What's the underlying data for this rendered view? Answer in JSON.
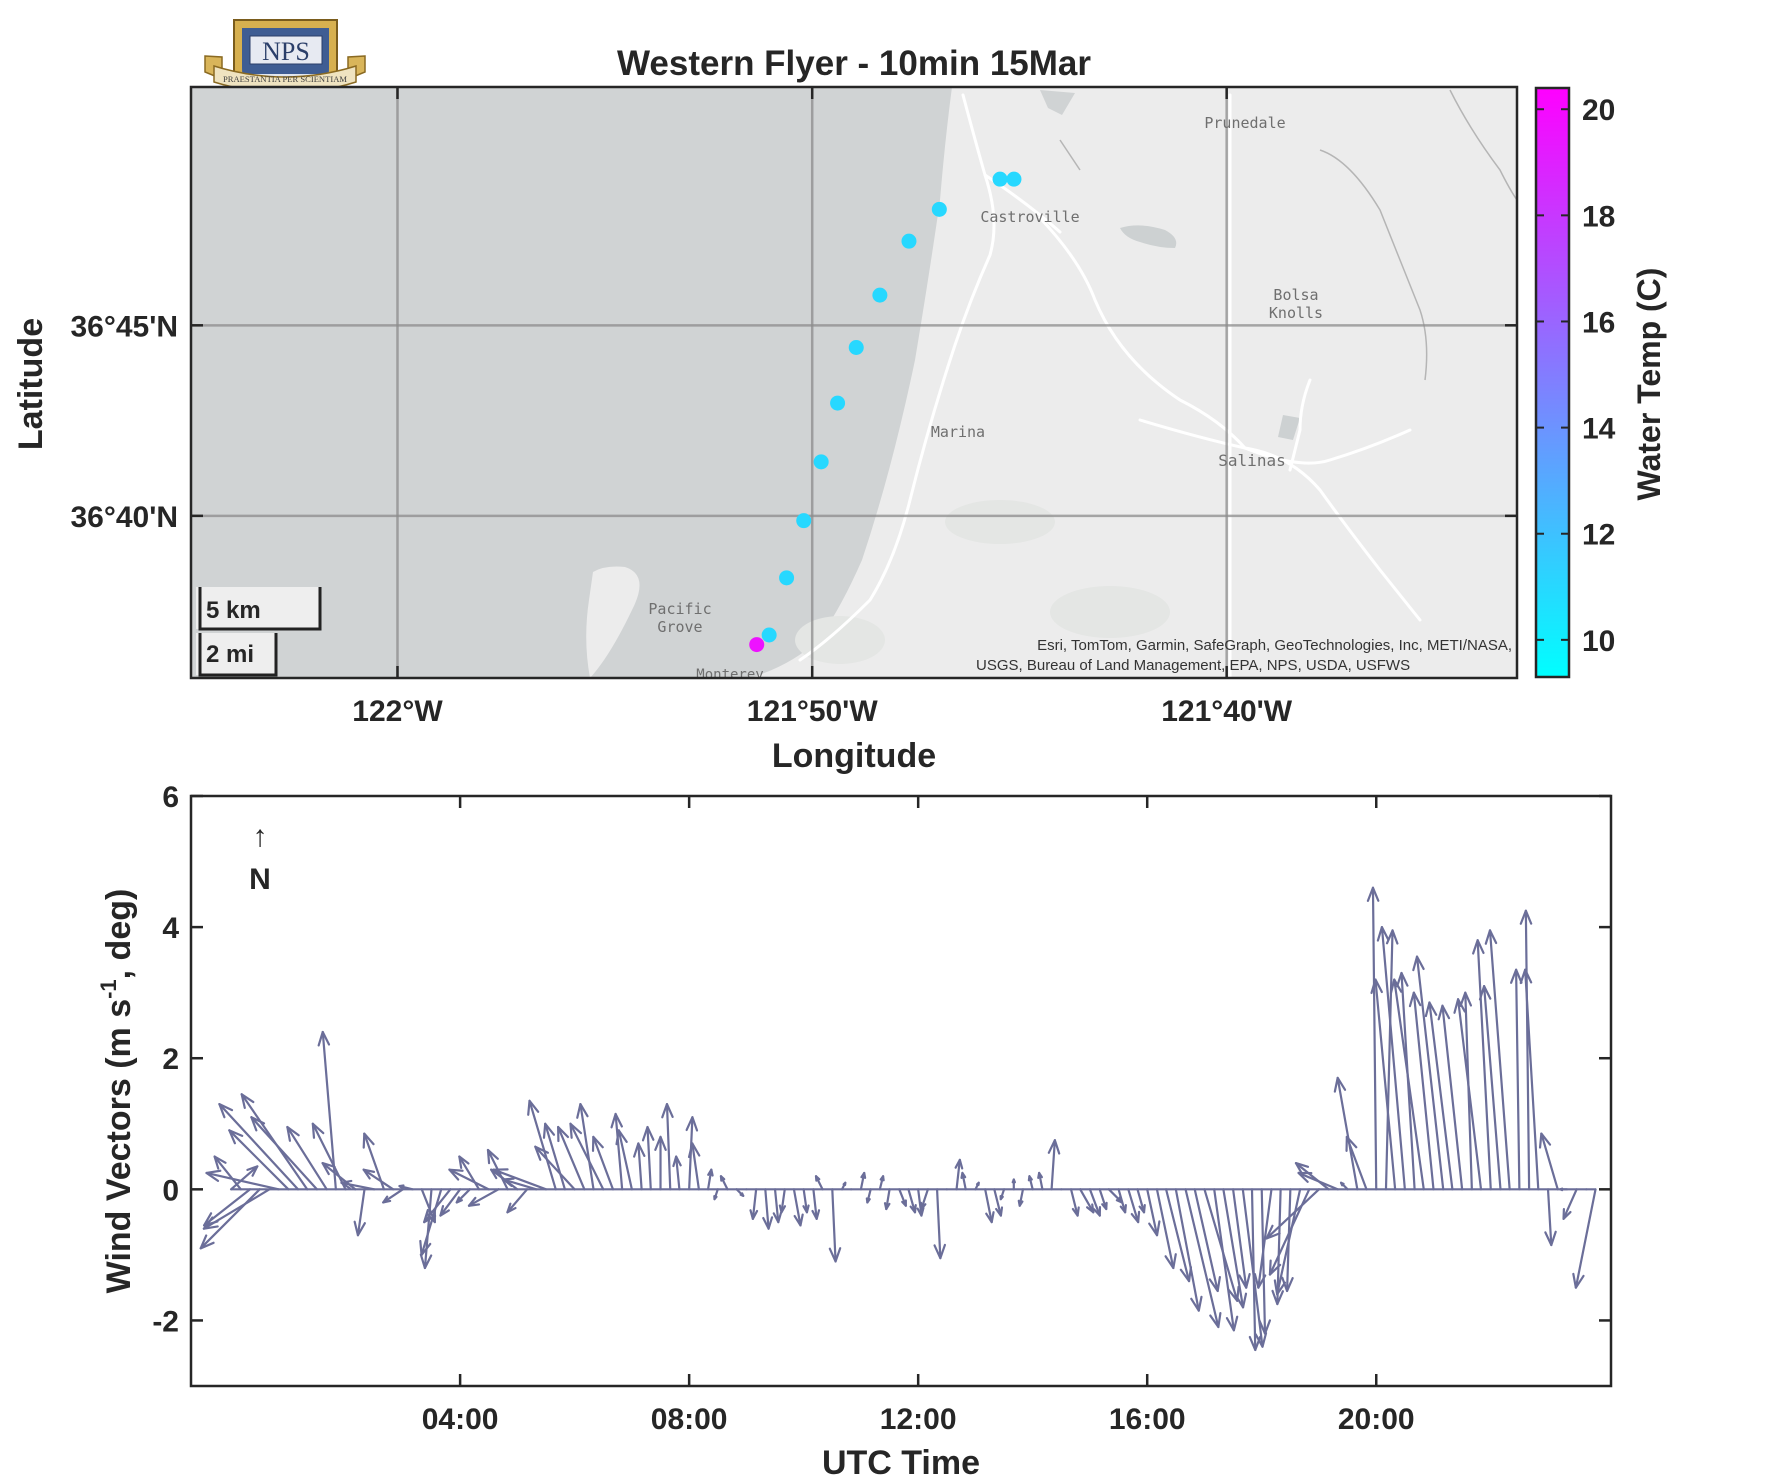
{
  "figure": {
    "title": "Western Flyer - 10min 15Mar",
    "logo": {
      "acronym": "NPS",
      "motto": "PRAESTANTIA PER SCIENTIAM"
    }
  },
  "chart_data": [
    {
      "type": "scatter",
      "subtype": "map-track",
      "xlabel": "Longitude",
      "ylabel": "Latitude",
      "xlim": [
        -122.083,
        -121.55
      ],
      "ylim": [
        36.5958,
        36.8542
      ],
      "x_ticks": [
        -122.0,
        -121.8333,
        -121.6667
      ],
      "x_tick_labels": [
        "122°W",
        "121°50'W",
        "121°40'W"
      ],
      "y_ticks": [
        36.6667,
        36.75
      ],
      "y_tick_labels": [
        "36°40'N",
        "36°45'N"
      ],
      "grid": true,
      "colorbar": {
        "label": "Water Temp (C)",
        "min": 9.3,
        "max": 20.4,
        "ticks": [
          10,
          12,
          14,
          16,
          18,
          20
        ],
        "low_color": "#00ffff",
        "high_color": "#ff00ff"
      },
      "points": [
        {
          "lon": -121.8556,
          "lat": 36.6104,
          "temp": 19.6
        },
        {
          "lon": -121.8506,
          "lat": 36.6146,
          "temp": 11.0
        },
        {
          "lon": -121.8436,
          "lat": 36.6396,
          "temp": 11.0
        },
        {
          "lon": -121.8367,
          "lat": 36.6646,
          "temp": 11.0
        },
        {
          "lon": -121.8297,
          "lat": 36.6903,
          "temp": 11.0
        },
        {
          "lon": -121.8231,
          "lat": 36.716,
          "temp": 11.0
        },
        {
          "lon": -121.8156,
          "lat": 36.7403,
          "temp": 11.0
        },
        {
          "lon": -121.8061,
          "lat": 36.7632,
          "temp": 11.0
        },
        {
          "lon": -121.7944,
          "lat": 36.7868,
          "temp": 11.0
        },
        {
          "lon": -121.7822,
          "lat": 36.8007,
          "temp": 11.0
        },
        {
          "lon": -121.7578,
          "lat": 36.8139,
          "temp": 11.0
        },
        {
          "lon": -121.7522,
          "lat": 36.8139,
          "temp": 11.0
        }
      ],
      "place_labels": [
        "Prunedale",
        "Castroville",
        "Bolsa",
        "Knolls",
        "Marina",
        "Salinas",
        "Pacific",
        "Grove",
        "Monterey"
      ],
      "scale_bar": {
        "km": "5 km",
        "mi": "2 mi"
      },
      "attribution": [
        "Esri, TomTom, Garmin, SafeGraph, GeoTechnologies, Inc, METI/NASA,",
        "USGS, Bureau of Land Management, EPA, NPS, USDA, USFWS"
      ]
    },
    {
      "type": "quiver",
      "xlabel": "UTC Time",
      "ylabel": "Wind Vectors (m s⁻¹, deg)",
      "ylabel_parts": {
        "pre": "Wind Vectors (m s",
        "sup": "-1",
        "post": ", deg)"
      },
      "north_arrow": {
        "arrow": "↑",
        "label": "N"
      },
      "xlim_hours": [
        -0.7,
        24.1
      ],
      "ylim": [
        -3,
        6
      ],
      "x_ticks_hours": [
        4,
        8,
        12,
        16,
        20
      ],
      "x_tick_labels": [
        "04:00",
        "08:00",
        "12:00",
        "16:00",
        "20:00"
      ],
      "y_ticks": [
        -2,
        0,
        2,
        4,
        6
      ],
      "color": "#6b6e99",
      "vectors": [
        {
          "t": 0.0,
          "u": 0.4,
          "v": 0.35
        },
        {
          "t": 0.17,
          "u": -0.4,
          "v": 0.5
        },
        {
          "t": 0.33,
          "u": -0.7,
          "v": -0.55
        },
        {
          "t": 0.5,
          "u": -0.9,
          "v": -0.9
        },
        {
          "t": 0.67,
          "u": -1.0,
          "v": -0.6
        },
        {
          "t": 0.83,
          "u": -1.1,
          "v": 0.25
        },
        {
          "t": 1.0,
          "u": -0.9,
          "v": 0.9
        },
        {
          "t": 1.17,
          "u": -1.2,
          "v": 1.3
        },
        {
          "t": 1.33,
          "u": -1.0,
          "v": 1.45
        },
        {
          "t": 1.5,
          "u": -1.0,
          "v": 1.1
        },
        {
          "t": 1.67,
          "u": -0.6,
          "v": 0.95
        },
        {
          "t": 1.83,
          "u": -0.2,
          "v": 2.4
        },
        {
          "t": 2.0,
          "u": -0.5,
          "v": 1.0
        },
        {
          "t": 2.17,
          "u": -0.5,
          "v": 0.4
        },
        {
          "t": 2.33,
          "u": -0.1,
          "v": -0.7
        },
        {
          "t": 2.5,
          "u": -0.5,
          "v": 0.1
        },
        {
          "t": 2.67,
          "u": -0.3,
          "v": 0.85
        },
        {
          "t": 2.83,
          "u": -0.45,
          "v": 0.3
        },
        {
          "t": 3.0,
          "u": -0.3,
          "v": -0.2
        },
        {
          "t": 3.17,
          "u": -0.2,
          "v": 0.05
        },
        {
          "t": 3.33,
          "u": 0.2,
          "v": -0.5
        },
        {
          "t": 3.5,
          "u": -0.1,
          "v": -1.2
        },
        {
          "t": 3.67,
          "u": -0.3,
          "v": -1.0
        },
        {
          "t": 3.83,
          "u": -0.4,
          "v": -0.5
        },
        {
          "t": 4.0,
          "u": -0.3,
          "v": -0.4
        },
        {
          "t": 4.17,
          "u": -0.2,
          "v": -0.2
        },
        {
          "t": 4.33,
          "u": -0.3,
          "v": 0.5
        },
        {
          "t": 4.5,
          "u": -0.6,
          "v": 0.3
        },
        {
          "t": 4.67,
          "u": -0.45,
          "v": -0.25
        },
        {
          "t": 4.83,
          "u": -0.3,
          "v": 0.6
        },
        {
          "t": 5.0,
          "u": -0.4,
          "v": 0.3
        },
        {
          "t": 5.17,
          "u": -0.3,
          "v": -0.35
        },
        {
          "t": 5.33,
          "u": -0.5,
          "v": 0.15
        },
        {
          "t": 5.5,
          "u": -0.8,
          "v": 0.3
        },
        {
          "t": 5.67,
          "u": -0.4,
          "v": 1.35
        },
        {
          "t": 5.83,
          "u": -0.3,
          "v": 1.0
        },
        {
          "t": 6.0,
          "u": -0.6,
          "v": 0.65
        },
        {
          "t": 6.17,
          "u": -0.4,
          "v": 0.95
        },
        {
          "t": 6.33,
          "u": -0.2,
          "v": 1.3
        },
        {
          "t": 6.5,
          "u": -0.5,
          "v": 1.0
        },
        {
          "t": 6.67,
          "u": -0.3,
          "v": 0.8
        },
        {
          "t": 6.83,
          "u": -0.1,
          "v": 1.15
        },
        {
          "t": 7.0,
          "u": -0.2,
          "v": 0.9
        },
        {
          "t": 7.17,
          "u": -0.05,
          "v": 0.7
        },
        {
          "t": 7.33,
          "u": -0.05,
          "v": 0.95
        },
        {
          "t": 7.5,
          "u": 0.0,
          "v": 0.8
        },
        {
          "t": 7.67,
          "u": -0.05,
          "v": 1.3
        },
        {
          "t": 7.83,
          "u": -0.05,
          "v": 0.5
        },
        {
          "t": 8.0,
          "u": 0.05,
          "v": 1.1
        },
        {
          "t": 8.17,
          "u": -0.1,
          "v": 0.7
        },
        {
          "t": 8.33,
          "u": 0.05,
          "v": 0.3
        },
        {
          "t": 8.5,
          "u": -0.05,
          "v": -0.15
        },
        {
          "t": 8.67,
          "u": -0.1,
          "v": 0.2
        },
        {
          "t": 8.83,
          "u": 0.1,
          "v": -0.1
        },
        {
          "t": 9.0,
          "u": 0.0,
          "v": 0.0
        },
        {
          "t": 9.17,
          "u": -0.05,
          "v": -0.45
        },
        {
          "t": 9.33,
          "u": 0.05,
          "v": -0.6
        },
        {
          "t": 9.5,
          "u": 0.05,
          "v": -0.5
        },
        {
          "t": 9.67,
          "u": -0.05,
          "v": -0.35
        },
        {
          "t": 9.83,
          "u": 0.1,
          "v": -0.55
        },
        {
          "t": 10.0,
          "u": 0.05,
          "v": -0.35
        },
        {
          "t": 10.17,
          "u": 0.05,
          "v": -0.45
        },
        {
          "t": 10.33,
          "u": -0.1,
          "v": 0.2
        },
        {
          "t": 10.5,
          "u": 0.05,
          "v": -1.1
        },
        {
          "t": 10.67,
          "u": 0.05,
          "v": 0.1
        },
        {
          "t": 10.83,
          "u": 0.0,
          "v": 0.0
        },
        {
          "t": 11.0,
          "u": 0.05,
          "v": 0.25
        },
        {
          "t": 11.17,
          "u": -0.05,
          "v": -0.2
        },
        {
          "t": 11.33,
          "u": 0.05,
          "v": 0.2
        },
        {
          "t": 11.5,
          "u": -0.05,
          "v": -0.3
        },
        {
          "t": 11.67,
          "u": 0.1,
          "v": -0.25
        },
        {
          "t": 11.83,
          "u": 0.1,
          "v": -0.35
        },
        {
          "t": 12.0,
          "u": 0.05,
          "v": -0.4
        },
        {
          "t": 12.17,
          "u": -0.1,
          "v": -0.3
        },
        {
          "t": 12.33,
          "u": 0.05,
          "v": -1.05
        },
        {
          "t": 12.5,
          "u": 0.0,
          "v": 0.0
        },
        {
          "t": 12.67,
          "u": 0.05,
          "v": 0.45
        },
        {
          "t": 12.83,
          "u": -0.05,
          "v": 0.25
        },
        {
          "t": 13.0,
          "u": 0.05,
          "v": 0.1
        },
        {
          "t": 13.17,
          "u": 0.1,
          "v": -0.5
        },
        {
          "t": 13.33,
          "u": 0.1,
          "v": -0.4
        },
        {
          "t": 13.5,
          "u": -0.05,
          "v": -0.15
        },
        {
          "t": 13.67,
          "u": 0.0,
          "v": 0.15
        },
        {
          "t": 13.83,
          "u": -0.05,
          "v": -0.25
        },
        {
          "t": 14.0,
          "u": -0.05,
          "v": 0.2
        },
        {
          "t": 14.17,
          "u": -0.05,
          "v": 0.25
        },
        {
          "t": 14.33,
          "u": 0.05,
          "v": 0.75
        },
        {
          "t": 14.5,
          "u": 0.0,
          "v": 0.0
        },
        {
          "t": 14.67,
          "u": 0.1,
          "v": -0.4
        },
        {
          "t": 14.83,
          "u": 0.2,
          "v": -0.35
        },
        {
          "t": 15.0,
          "u": 0.15,
          "v": -0.4
        },
        {
          "t": 15.17,
          "u": 0.1,
          "v": -0.3
        },
        {
          "t": 15.33,
          "u": 0.2,
          "v": -0.2
        },
        {
          "t": 15.5,
          "u": 0.1,
          "v": -0.35
        },
        {
          "t": 15.67,
          "u": 0.15,
          "v": -0.5
        },
        {
          "t": 15.83,
          "u": 0.1,
          "v": -0.35
        },
        {
          "t": 16.0,
          "u": 0.15,
          "v": -0.7
        },
        {
          "t": 16.17,
          "u": 0.25,
          "v": -1.2
        },
        {
          "t": 16.33,
          "u": 0.35,
          "v": -1.4
        },
        {
          "t": 16.5,
          "u": 0.35,
          "v": -1.85
        },
        {
          "t": 16.67,
          "u": 0.5,
          "v": -2.1
        },
        {
          "t": 16.83,
          "u": 0.35,
          "v": -1.55
        },
        {
          "t": 17.0,
          "u": 0.5,
          "v": -1.7
        },
        {
          "t": 17.17,
          "u": 0.3,
          "v": -2.15
        },
        {
          "t": 17.33,
          "u": 0.3,
          "v": -1.8
        },
        {
          "t": 17.5,
          "u": 0.2,
          "v": -1.5
        },
        {
          "t": 17.67,
          "u": 0.3,
          "v": -2.4
        },
        {
          "t": 17.83,
          "u": 0.05,
          "v": -2.45
        },
        {
          "t": 18.0,
          "u": 0.05,
          "v": -2.2
        },
        {
          "t": 18.17,
          "u": -0.2,
          "v": -1.5
        },
        {
          "t": 18.33,
          "u": -0.05,
          "v": -1.75
        },
        {
          "t": 18.5,
          "u": -0.05,
          "v": -1.55
        },
        {
          "t": 18.67,
          "u": -0.35,
          "v": -1.6
        },
        {
          "t": 18.83,
          "u": -0.6,
          "v": -1.3
        },
        {
          "t": 19.0,
          "u": -0.8,
          "v": -0.75
        },
        {
          "t": 19.17,
          "u": -0.5,
          "v": 0.4
        },
        {
          "t": 19.33,
          "u": -0.6,
          "v": 0.25
        },
        {
          "t": 19.5,
          "u": -0.1,
          "v": 0.1
        },
        {
          "t": 19.67,
          "u": -0.3,
          "v": 1.7
        },
        {
          "t": 19.83,
          "u": -0.3,
          "v": 0.8
        },
        {
          "t": 20.0,
          "u": -0.05,
          "v": 4.6
        },
        {
          "t": 20.17,
          "u": 0.1,
          "v": 3.95
        },
        {
          "t": 20.33,
          "u": -0.3,
          "v": 3.2
        },
        {
          "t": 20.5,
          "u": -0.35,
          "v": 4.0
        },
        {
          "t": 20.67,
          "u": -0.2,
          "v": 3.3
        },
        {
          "t": 20.83,
          "u": -0.45,
          "v": 3.2
        },
        {
          "t": 21.0,
          "u": -0.3,
          "v": 3.0
        },
        {
          "t": 21.17,
          "u": -0.4,
          "v": 3.55
        },
        {
          "t": 21.33,
          "u": -0.35,
          "v": 2.85
        },
        {
          "t": 21.5,
          "u": -0.3,
          "v": 2.8
        },
        {
          "t": 21.67,
          "u": -0.1,
          "v": 3.0
        },
        {
          "t": 21.83,
          "u": -0.35,
          "v": 2.9
        },
        {
          "t": 22.0,
          "u": -0.2,
          "v": 3.8
        },
        {
          "t": 22.17,
          "u": -0.25,
          "v": 3.1
        },
        {
          "t": 22.33,
          "u": -0.3,
          "v": 3.95
        },
        {
          "t": 22.5,
          "u": -0.05,
          "v": 3.35
        },
        {
          "t": 22.67,
          "u": -0.05,
          "v": 4.25
        },
        {
          "t": 22.83,
          "u": -0.2,
          "v": 3.35
        },
        {
          "t": 23.0,
          "u": 0.05,
          "v": -0.85
        },
        {
          "t": 23.17,
          "u": -0.25,
          "v": 0.85
        },
        {
          "t": 23.33,
          "u": -0.1,
          "v": 0.0
        },
        {
          "t": 23.5,
          "u": -0.2,
          "v": -0.45
        },
        {
          "t": 23.67,
          "u": 0.0,
          "v": 0.0
        },
        {
          "t": 23.83,
          "u": -0.3,
          "v": -1.5
        }
      ]
    }
  ]
}
